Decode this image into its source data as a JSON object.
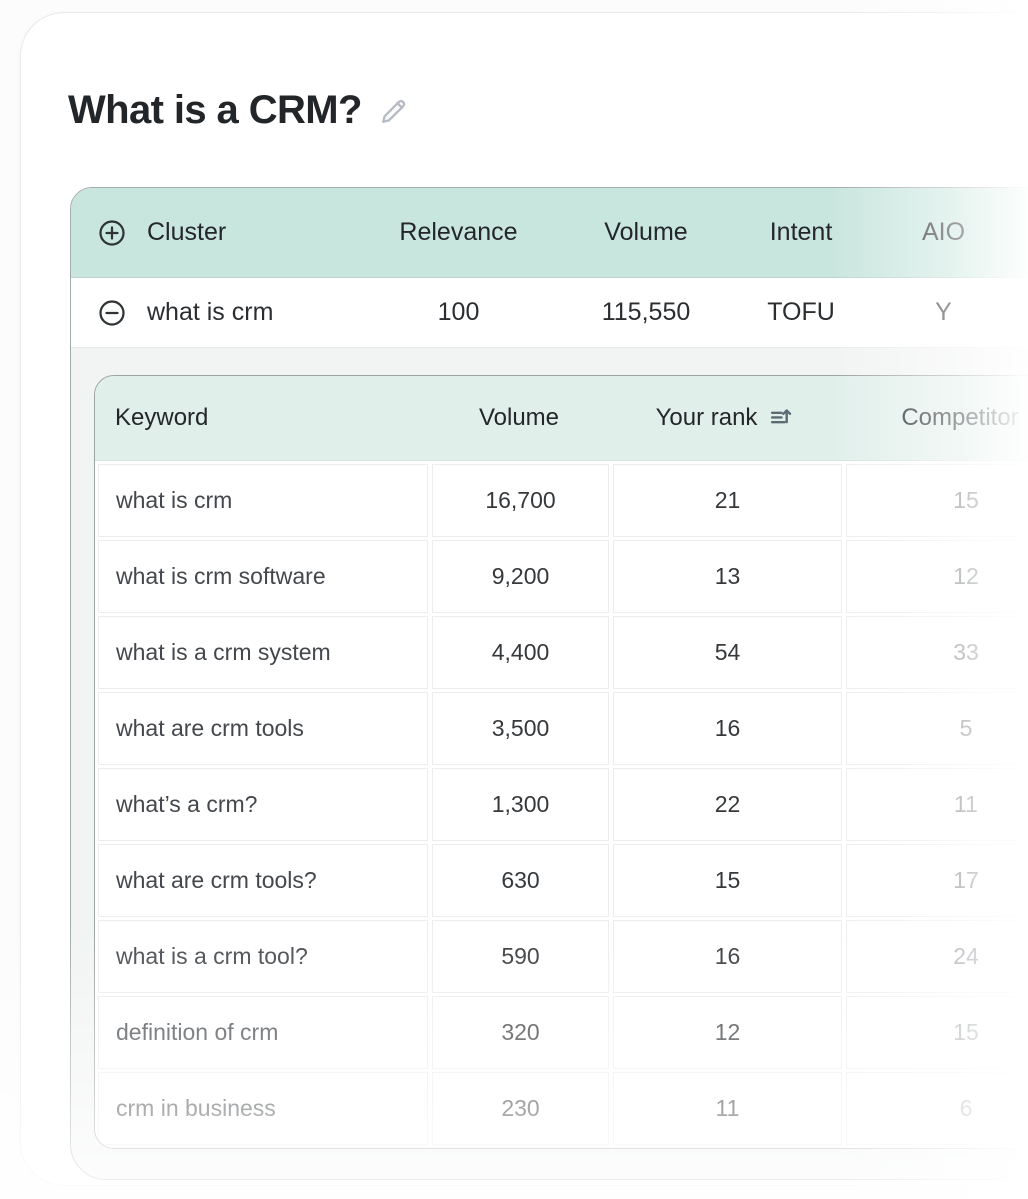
{
  "page": {
    "title": "What is a CRM?"
  },
  "cluster_table": {
    "columns": [
      "Cluster",
      "Relevance",
      "Volume",
      "Intent",
      "AIO"
    ],
    "row": {
      "cluster": "what is crm",
      "relevance": "100",
      "volume": "115,550",
      "intent": "TOFU",
      "aio": "Y"
    }
  },
  "keyword_table": {
    "columns": [
      "Keyword",
      "Volume",
      "Your rank",
      "Competitor"
    ],
    "rows": [
      {
        "keyword": "what is crm",
        "volume": "16,700",
        "your_rank": "21",
        "competitor": "15"
      },
      {
        "keyword": "what is crm software",
        "volume": "9,200",
        "your_rank": "13",
        "competitor": "12"
      },
      {
        "keyword": "what is a crm system",
        "volume": "4,400",
        "your_rank": "54",
        "competitor": "33"
      },
      {
        "keyword": "what are crm tools",
        "volume": "3,500",
        "your_rank": "16",
        "competitor": "5"
      },
      {
        "keyword": "what’s a crm?",
        "volume": "1,300",
        "your_rank": "22",
        "competitor": "11"
      },
      {
        "keyword": "what are crm tools?",
        "volume": "630",
        "your_rank": "15",
        "competitor": "17"
      },
      {
        "keyword": "what is a crm tool?",
        "volume": "590",
        "your_rank": "16",
        "competitor": "24"
      },
      {
        "keyword": "definition of crm",
        "volume": "320",
        "your_rank": "12",
        "competitor": "15"
      },
      {
        "keyword": "crm in business",
        "volume": "230",
        "your_rank": "11",
        "competitor": "6"
      }
    ]
  },
  "icons": {
    "edit": "pencil-icon",
    "expand_all": "plus-circle-icon",
    "collapse_row": "minus-circle-icon",
    "sort_rank": "sort-ascending-icon"
  },
  "colors": {
    "header_mint": "#c9e6de",
    "subheader_mint": "#e1efeb",
    "panel_gray": "#f2f3f3",
    "text_dark": "#24262a",
    "icon_gray": "#b6bcc4",
    "sort_icon": "#5b6b72"
  }
}
